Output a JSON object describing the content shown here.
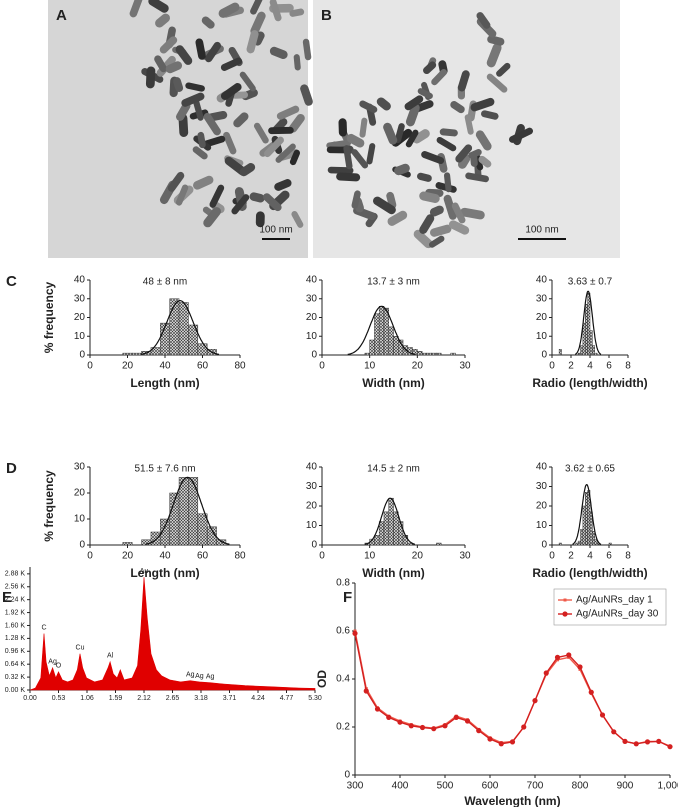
{
  "figure": {
    "panels": [
      "A",
      "B",
      "C",
      "D",
      "E",
      "F"
    ],
    "scale_bars": [
      "100 nm",
      "100 nm"
    ]
  },
  "chart_data": [
    {
      "type": "histogram",
      "annotation": "48 ± 8 nm",
      "xlabel": "Length (nm)",
      "ylabel": "% frequency",
      "bins": [
        17.5,
        22.5,
        27.5,
        32.5,
        37.5,
        42.5,
        47.5,
        52.5,
        57.5,
        62.5,
        67.5
      ],
      "values": [
        1,
        1,
        2,
        4,
        17,
        30,
        28,
        16,
        6,
        3
      ],
      "fit": {
        "mean": 48,
        "sd": 7,
        "peak": 29
      },
      "xlim": [
        0,
        80
      ],
      "ylim": [
        0,
        40
      ],
      "xticks": [
        0,
        20,
        40,
        60,
        80
      ],
      "yticks": [
        0,
        10,
        20,
        30,
        40
      ]
    },
    {
      "type": "histogram",
      "annotation": "13.7 ± 3 nm",
      "xlabel": "Width (nm)",
      "bins": [
        9,
        10,
        11,
        12,
        13,
        14,
        15,
        16,
        17,
        18,
        19,
        20,
        21,
        22,
        23,
        24,
        25,
        26,
        27,
        28
      ],
      "values": [
        1,
        8,
        22,
        26,
        25,
        15,
        10,
        8,
        5,
        4,
        3,
        2,
        1,
        1,
        1,
        1,
        0,
        0,
        1
      ],
      "fit": {
        "mean": 12.5,
        "sd": 2.4,
        "peak": 26
      },
      "xlim": [
        0,
        30
      ],
      "ylim": [
        0,
        40
      ],
      "xticks": [
        0,
        10,
        20,
        30
      ],
      "yticks": [
        0,
        10,
        20,
        30,
        40
      ]
    },
    {
      "type": "histogram",
      "annotation": "3.63 ± 0.7",
      "xlabel": "Radio (length/width)",
      "bins": [
        0.75,
        1,
        1.25,
        1.5,
        1.75,
        2,
        2.25,
        2.5,
        2.75,
        3,
        3.25,
        3.5,
        3.75,
        4,
        4.25,
        4.5,
        4.75
      ],
      "values": [
        3,
        0,
        0,
        0,
        0,
        0,
        0,
        0,
        1,
        5,
        17,
        27,
        33,
        13,
        5,
        1
      ],
      "fit": {
        "mean": 3.8,
        "sd": 0.45,
        "peak": 34
      },
      "xlim": [
        0,
        8
      ],
      "ylim": [
        0,
        40
      ],
      "xticks": [
        0,
        2,
        4,
        6,
        8
      ],
      "yticks": [
        0,
        10,
        20,
        30,
        40
      ]
    },
    {
      "type": "histogram",
      "annotation": "51.5 ± 7.6 nm",
      "xlabel": "Length (nm)",
      "ylabel": "% frequency",
      "bins": [
        17.5,
        22.5,
        27.5,
        32.5,
        37.5,
        42.5,
        47.5,
        52.5,
        57.5,
        62.5,
        67.5,
        72.5
      ],
      "values": [
        1,
        0,
        2,
        5,
        10,
        20,
        26,
        26,
        12,
        7,
        2
      ],
      "fit": {
        "mean": 52,
        "sd": 7.5,
        "peak": 26
      },
      "xlim": [
        0,
        80
      ],
      "ylim": [
        0,
        30
      ],
      "xticks": [
        0,
        20,
        40,
        60,
        80
      ],
      "yticks": [
        0,
        10,
        20,
        30
      ]
    },
    {
      "type": "histogram",
      "annotation": "14.5 ± 2 nm",
      "xlabel": "Width (nm)",
      "bins": [
        9,
        10,
        11,
        12,
        13,
        14,
        15,
        16,
        17,
        18,
        19,
        20,
        21,
        22,
        23,
        24,
        25
      ],
      "values": [
        1,
        3,
        5,
        12,
        17,
        24,
        17,
        12,
        5,
        1,
        0,
        0,
        0,
        0,
        0,
        1
      ],
      "fit": {
        "mean": 14.3,
        "sd": 1.8,
        "peak": 24
      },
      "xlim": [
        0,
        30
      ],
      "ylim": [
        0,
        40
      ],
      "xticks": [
        0,
        10,
        20,
        30
      ],
      "yticks": [
        0,
        10,
        20,
        30,
        40
      ]
    },
    {
      "type": "histogram",
      "annotation": "3.62 ± 0.65",
      "xlabel": "Radio (length/width)",
      "bins": [
        0.75,
        1,
        1.25,
        1.5,
        1.75,
        2,
        2.25,
        2.5,
        2.75,
        3,
        3.25,
        3.5,
        3.75,
        4,
        4.25,
        4.5,
        4.75,
        5,
        5.25,
        5.5,
        5.75,
        6,
        6.25
      ],
      "values": [
        1,
        0,
        0,
        0,
        0,
        0,
        0,
        1,
        2,
        8,
        20,
        27,
        28,
        17,
        7,
        3,
        1,
        0,
        0,
        0,
        0,
        1
      ],
      "fit": {
        "mean": 3.65,
        "sd": 0.5,
        "peak": 31
      },
      "xlim": [
        0,
        8
      ],
      "ylim": [
        0,
        40
      ],
      "xticks": [
        0,
        2,
        4,
        6,
        8
      ],
      "yticks": [
        0,
        10,
        20,
        30,
        40
      ]
    },
    {
      "type": "area",
      "color": "#e00000",
      "x": [
        0,
        0.1,
        0.2,
        0.26,
        0.3,
        0.36,
        0.42,
        0.48,
        0.53,
        0.6,
        0.7,
        0.8,
        0.88,
        0.93,
        0.98,
        1.05,
        1.2,
        1.35,
        1.45,
        1.49,
        1.55,
        1.62,
        1.68,
        1.75,
        1.9,
        2.0,
        2.06,
        2.12,
        2.18,
        2.25,
        2.35,
        2.45,
        2.6,
        2.8,
        2.98,
        3.15,
        3.35,
        3.6,
        4.0,
        4.5,
        5.0,
        5.3
      ],
      "values": [
        0,
        50,
        300,
        1400,
        700,
        350,
        550,
        300,
        450,
        250,
        200,
        250,
        500,
        900,
        550,
        300,
        200,
        250,
        550,
        700,
        400,
        300,
        500,
        250,
        300,
        600,
        1500,
        2800,
        1800,
        900,
        500,
        350,
        250,
        200,
        230,
        200,
        180,
        150,
        110,
        80,
        50,
        40
      ],
      "peak_labels": [
        {
          "label": "C",
          "x": 0.26,
          "y": 1400
        },
        {
          "label": "Ag",
          "x": 0.42,
          "y": 550
        },
        {
          "label": "O",
          "x": 0.53,
          "y": 450
        },
        {
          "label": "Cu",
          "x": 0.93,
          "y": 900
        },
        {
          "label": "Al",
          "x": 1.49,
          "y": 700
        },
        {
          "label": "Au",
          "x": 2.12,
          "y": 2800
        },
        {
          "label": "Ag",
          "x": 2.98,
          "y": 230
        },
        {
          "label": "Ag",
          "x": 3.15,
          "y": 200
        },
        {
          "label": "Ag",
          "x": 3.35,
          "y": 180
        }
      ],
      "xlim": [
        0,
        5.3
      ],
      "ylim": [
        0,
        3050
      ],
      "xticks": [
        {
          "value": 0,
          "label": "0.00"
        },
        0.53,
        1.06,
        1.59,
        2.12,
        2.65,
        3.18,
        3.71,
        4.24,
        4.77,
        {
          "value": 5.3,
          "label": "5.30"
        }
      ],
      "yticks": [
        {
          "value": 0,
          "label": "0.00 K"
        },
        {
          "value": 320,
          "label": "0.32 K"
        },
        {
          "value": 640,
          "label": "0.64 K"
        },
        {
          "value": 960,
          "label": "0.96 K"
        },
        {
          "value": 1280,
          "label": "1.28 K"
        },
        {
          "value": 1600,
          "label": "1.60 K"
        },
        {
          "value": 1920,
          "label": "1.92 K"
        },
        {
          "value": 2240,
          "label": "2.24 K"
        },
        {
          "value": 2560,
          "label": "2.56 K"
        },
        {
          "value": 2880,
          "label": "2.88 K"
        }
      ]
    },
    {
      "type": "line",
      "xlabel": "Wavelength (nm)",
      "ylabel": "OD",
      "legend": "upper right",
      "x": [
        300,
        325,
        350,
        375,
        400,
        425,
        450,
        475,
        500,
        525,
        550,
        575,
        600,
        625,
        650,
        675,
        700,
        725,
        750,
        775,
        800,
        825,
        850,
        875,
        900,
        925,
        950,
        975,
        1000
      ],
      "series": [
        {
          "name": "Ag/AuNRs_day 1",
          "color": "#ef5a4a",
          "marker": "square",
          "values": [
            0.6,
            0.36,
            0.28,
            0.245,
            0.225,
            0.21,
            0.2,
            0.195,
            0.21,
            0.245,
            0.23,
            0.19,
            0.155,
            0.135,
            0.14,
            0.2,
            0.31,
            0.42,
            0.48,
            0.49,
            0.44,
            0.34,
            0.25,
            0.18,
            0.14,
            0.13,
            0.14,
            0.14,
            0.12
          ]
        },
        {
          "name": "Ag/AuNRs_day 30",
          "color": "#d42020",
          "marker": "circle",
          "values": [
            0.59,
            0.35,
            0.275,
            0.24,
            0.22,
            0.205,
            0.198,
            0.193,
            0.205,
            0.24,
            0.225,
            0.185,
            0.15,
            0.13,
            0.138,
            0.2,
            0.31,
            0.425,
            0.49,
            0.5,
            0.45,
            0.345,
            0.25,
            0.18,
            0.14,
            0.13,
            0.138,
            0.14,
            0.118
          ]
        }
      ],
      "xlim": [
        300,
        1000
      ],
      "ylim": [
        0,
        0.8
      ],
      "xticks": [
        300,
        400,
        500,
        600,
        700,
        800,
        900,
        {
          "value": 1000,
          "label": "1,000"
        }
      ],
      "yticks": [
        0,
        0.2,
        0.4,
        0.6,
        0.8
      ]
    }
  ]
}
